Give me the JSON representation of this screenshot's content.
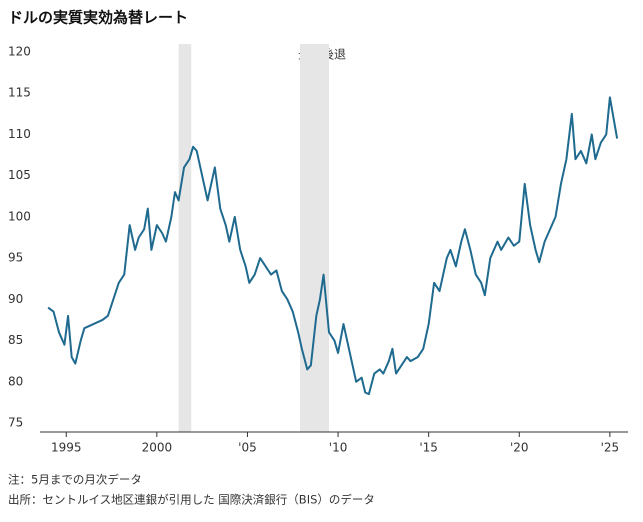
{
  "chart_data": {
    "type": "line",
    "title": "ドルの実質実効為替レート",
    "annotation": "景気後退",
    "notes": [
      "注：5月までの月次データ",
      "出所：セントルイス地区連銀が引用した 国際決済銀行（BIS）のデータ"
    ],
    "color": "#1f6a8f",
    "recession_color": "#e6e6e6",
    "recessions": [
      [
        2001.2,
        2001.9
      ],
      [
        2007.9,
        2009.5
      ]
    ],
    "x": [
      1994.0,
      1994.3,
      1994.6,
      1994.9,
      1995.1,
      1995.3,
      1995.5,
      1995.8,
      1996.0,
      1996.5,
      1997.0,
      1997.3,
      1997.6,
      1997.9,
      1998.2,
      1998.5,
      1998.8,
      1999.0,
      1999.3,
      1999.5,
      1999.7,
      2000.0,
      2000.3,
      2000.5,
      2000.8,
      2001.0,
      2001.2,
      2001.5,
      2001.8,
      2002.0,
      2002.2,
      2002.5,
      2002.8,
      2003.0,
      2003.2,
      2003.5,
      2003.8,
      2004.0,
      2004.3,
      2004.6,
      2004.9,
      2005.1,
      2005.4,
      2005.7,
      2006.0,
      2006.3,
      2006.6,
      2006.9,
      2007.2,
      2007.5,
      2007.8,
      2008.0,
      2008.3,
      2008.5,
      2008.8,
      2009.0,
      2009.2,
      2009.5,
      2009.8,
      2010.0,
      2010.3,
      2010.5,
      2010.8,
      2011.0,
      2011.3,
      2011.5,
      2011.7,
      2012.0,
      2012.3,
      2012.5,
      2012.8,
      2013.0,
      2013.2,
      2013.5,
      2013.8,
      2014.0,
      2014.4,
      2014.7,
      2015.0,
      2015.3,
      2015.6,
      2016.0,
      2016.2,
      2016.5,
      2016.8,
      2017.0,
      2017.3,
      2017.6,
      2017.9,
      2018.1,
      2018.4,
      2018.8,
      2019.0,
      2019.4,
      2019.7,
      2020.0,
      2020.3,
      2020.6,
      2020.9,
      2021.1,
      2021.4,
      2021.7,
      2022.0,
      2022.3,
      2022.6,
      2022.9,
      2023.1,
      2023.4,
      2023.7,
      2024.0,
      2024.2,
      2024.5,
      2024.8,
      2025.0,
      2025.4
    ],
    "values": [
      89,
      88.5,
      86,
      84.5,
      88,
      83,
      82.2,
      85,
      86.5,
      87,
      87.5,
      88,
      90,
      92,
      93,
      99,
      96,
      97.5,
      98.5,
      101,
      96,
      99,
      98,
      97,
      100,
      103,
      102,
      106,
      107,
      108.5,
      108,
      105,
      102,
      104,
      106,
      101,
      99,
      97,
      100,
      96,
      94,
      92,
      93,
      95,
      94,
      93,
      93.5,
      91,
      90,
      88.5,
      86,
      84,
      81.5,
      82,
      88,
      90,
      93,
      86,
      85,
      83.5,
      87,
      85,
      82,
      80,
      80.5,
      78.7,
      78.5,
      81,
      81.5,
      81,
      82.5,
      84,
      81,
      82,
      83,
      82.5,
      83,
      84,
      87,
      92,
      91,
      95,
      96,
      94,
      97,
      98.5,
      96,
      93,
      92,
      90.5,
      95,
      97,
      96,
      97.5,
      96.5,
      97,
      104,
      99,
      96,
      94.5,
      97,
      98.5,
      100,
      104,
      107,
      112.5,
      107,
      108,
      106.5,
      110,
      107,
      109,
      110,
      114.5,
      109.5
    ],
    "xlim": [
      1993,
      2026
    ],
    "ylim": [
      75,
      120
    ],
    "xticks": [
      1995,
      2000,
      {
        "value": 2005,
        "label": "'05"
      },
      {
        "value": 2010,
        "label": "'10"
      },
      {
        "value": 2015,
        "label": "'15"
      },
      {
        "value": 2020,
        "label": "'20"
      },
      {
        "value": 2025,
        "label": "'25"
      }
    ],
    "yticks": [
      75,
      80,
      85,
      90,
      95,
      100,
      105,
      110,
      115,
      120
    ]
  }
}
